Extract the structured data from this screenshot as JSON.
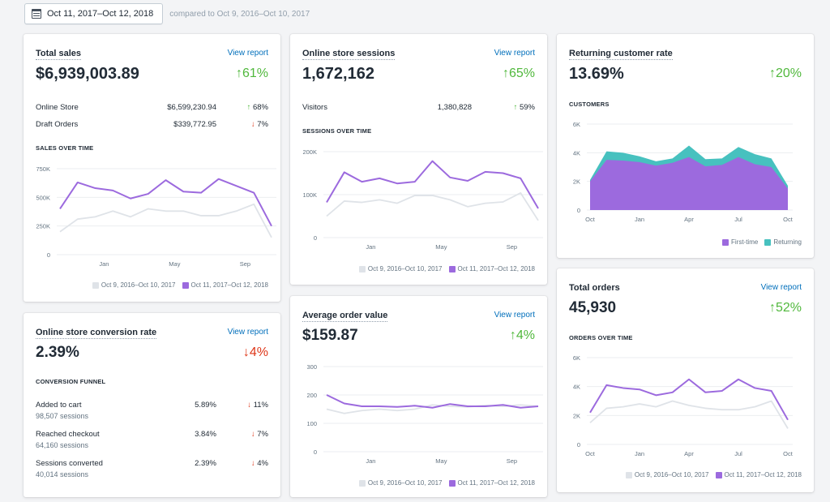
{
  "date_range": {
    "label": "Oct 11, 2017–Oct 12, 2018",
    "compare": "compared to Oct 9, 2016–Oct 10, 2017"
  },
  "colors": {
    "current": "#9c6ade",
    "previous": "#dfe3e8",
    "returning": "#47c1bf",
    "up": "#50b83c",
    "down": "#de3618",
    "link": "#006fbb"
  },
  "cards": {
    "total_sales": {
      "title": "Total sales",
      "view_report": "View report",
      "value": "$6,939,003.89",
      "delta": "61%",
      "rows": [
        {
          "label": "Online Store",
          "value": "$6,599,230.94",
          "delta": "68%"
        },
        {
          "label": "Draft Orders",
          "value": "$339,772.95",
          "delta": "7%"
        }
      ],
      "section": "SALES OVER TIME",
      "legend": {
        "previous": "Oct 9, 2016–Oct 10, 2017",
        "current": "Oct 11, 2017–Oct 12, 2018"
      }
    },
    "sessions": {
      "title": "Online store sessions",
      "view_report": "View report",
      "value": "1,672,162",
      "delta": "65%",
      "rows": [
        {
          "label": "Visitors",
          "value": "1,380,828",
          "delta": "59%"
        }
      ],
      "section": "SESSIONS OVER TIME",
      "legend": {
        "previous": "Oct 9, 2016–Oct 10, 2017",
        "current": "Oct 11, 2017–Oct 12, 2018"
      }
    },
    "returning": {
      "title": "Returning customer rate",
      "value": "13.69%",
      "delta": "20%",
      "section": "CUSTOMERS",
      "legend": {
        "first": "First-time",
        "returning": "Returning"
      }
    },
    "conversion": {
      "title": "Online store conversion rate",
      "view_report": "View report",
      "value": "2.39%",
      "delta": "4%",
      "section": "CONVERSION FUNNEL",
      "rows": [
        {
          "label": "Added to cart",
          "sub": "98,507 sessions",
          "value": "5.89%",
          "delta": "11%"
        },
        {
          "label": "Reached checkout",
          "sub": "64,160 sessions",
          "value": "3.84%",
          "delta": "7%"
        },
        {
          "label": "Sessions converted",
          "sub": "40,014 sessions",
          "value": "2.39%",
          "delta": "4%"
        }
      ]
    },
    "aov": {
      "title": "Average order value",
      "view_report": "View report",
      "value": "$159.87",
      "delta": "4%",
      "legend": {
        "previous": "Oct 9, 2016–Oct 10, 2017",
        "current": "Oct 11, 2017–Oct 12, 2018"
      }
    },
    "orders": {
      "title": "Total orders",
      "view_report": "View report",
      "value": "45,930",
      "delta": "52%",
      "section": "ORDERS OVER TIME",
      "legend": {
        "previous": "Oct 9, 2016–Oct 10, 2017",
        "current": "Oct 11, 2017–Oct 12, 2018"
      }
    }
  },
  "chart_data": [
    {
      "id": "sales",
      "type": "line",
      "x": [
        0,
        1,
        2,
        3,
        4,
        5,
        6,
        7,
        8,
        9,
        10,
        11,
        12
      ],
      "xticks": [
        {
          "x": 2.5,
          "label": "Jan"
        },
        {
          "x": 6.5,
          "label": "May"
        },
        {
          "x": 10.5,
          "label": "Sep"
        }
      ],
      "ylim": [
        0,
        750000
      ],
      "yticks": [
        {
          "v": 0,
          "label": "0"
        },
        {
          "v": 250000,
          "label": "250K"
        },
        {
          "v": 500000,
          "label": "500K"
        },
        {
          "v": 750000,
          "label": "750K"
        }
      ],
      "series": [
        {
          "name": "Oct 9, 2016–Oct 10, 2017",
          "values": [
            200000,
            310000,
            330000,
            380000,
            330000,
            400000,
            380000,
            380000,
            340000,
            340000,
            380000,
            440000,
            150000
          ]
        },
        {
          "name": "Oct 11, 2017–Oct 12, 2018",
          "values": [
            400000,
            630000,
            580000,
            560000,
            490000,
            530000,
            650000,
            550000,
            540000,
            660000,
            600000,
            540000,
            250000
          ]
        }
      ]
    },
    {
      "id": "sessions",
      "type": "line",
      "x": [
        0,
        1,
        2,
        3,
        4,
        5,
        6,
        7,
        8,
        9,
        10,
        11,
        12
      ],
      "xticks": [
        {
          "x": 2.5,
          "label": "Jan"
        },
        {
          "x": 6.5,
          "label": "May"
        },
        {
          "x": 10.5,
          "label": "Sep"
        }
      ],
      "ylim": [
        0,
        200000
      ],
      "yticks": [
        {
          "v": 0,
          "label": "0"
        },
        {
          "v": 100000,
          "label": "100K"
        },
        {
          "v": 200000,
          "label": "200K"
        }
      ],
      "series": [
        {
          "name": "Oct 9, 2016–Oct 10, 2017",
          "values": [
            50000,
            85000,
            82000,
            88000,
            80000,
            98000,
            98000,
            88000,
            72000,
            80000,
            83000,
            104000,
            40000
          ]
        },
        {
          "name": "Oct 11, 2017–Oct 12, 2018",
          "values": [
            82000,
            152000,
            130000,
            138000,
            126000,
            130000,
            178000,
            140000,
            132000,
            153000,
            150000,
            138000,
            68000
          ]
        }
      ]
    },
    {
      "id": "customers",
      "type": "area",
      "x": [
        0,
        1,
        2,
        3,
        4,
        5,
        6,
        7,
        8,
        9,
        10,
        11,
        12
      ],
      "xticks": [
        {
          "x": 0,
          "label": "Oct"
        },
        {
          "x": 3,
          "label": "Jan"
        },
        {
          "x": 6,
          "label": "Apr"
        },
        {
          "x": 9,
          "label": "Jul"
        },
        {
          "x": 12,
          "label": "Oct"
        }
      ],
      "ylim": [
        0,
        6000
      ],
      "yticks": [
        {
          "v": 0,
          "label": "0"
        },
        {
          "v": 2000,
          "label": "2K"
        },
        {
          "v": 4000,
          "label": "4K"
        },
        {
          "v": 6000,
          "label": "6K"
        }
      ],
      "series": [
        {
          "name": "First-time",
          "values": [
            2000,
            3500,
            3450,
            3350,
            3100,
            3300,
            3700,
            3050,
            3150,
            3700,
            3200,
            3000,
            1500
          ]
        },
        {
          "name": "Returning",
          "values": [
            2100,
            4100,
            4000,
            3750,
            3400,
            3600,
            4500,
            3550,
            3600,
            4400,
            3900,
            3600,
            1700
          ]
        }
      ]
    },
    {
      "id": "aov",
      "type": "line",
      "x": [
        0,
        1,
        2,
        3,
        4,
        5,
        6,
        7,
        8,
        9,
        10,
        11,
        12
      ],
      "xticks": [
        {
          "x": 2.5,
          "label": "Jan"
        },
        {
          "x": 6.5,
          "label": "May"
        },
        {
          "x": 10.5,
          "label": "Sep"
        }
      ],
      "ylim": [
        0,
        300
      ],
      "yticks": [
        {
          "v": 0,
          "label": "0"
        },
        {
          "v": 100,
          "label": "100"
        },
        {
          "v": 200,
          "label": "200"
        },
        {
          "v": 300,
          "label": "300"
        }
      ],
      "series": [
        {
          "name": "Oct 9, 2016–Oct 10, 2017",
          "values": [
            150,
            135,
            145,
            150,
            145,
            150,
            165,
            160,
            158,
            163,
            160,
            165,
            160
          ]
        },
        {
          "name": "Oct 11, 2017–Oct 12, 2018",
          "values": [
            200,
            170,
            160,
            160,
            158,
            162,
            155,
            168,
            160,
            160,
            165,
            155,
            160
          ]
        }
      ]
    },
    {
      "id": "orders",
      "type": "line",
      "x": [
        0,
        1,
        2,
        3,
        4,
        5,
        6,
        7,
        8,
        9,
        10,
        11,
        12
      ],
      "xticks": [
        {
          "x": 0,
          "label": "Oct"
        },
        {
          "x": 3,
          "label": "Jan"
        },
        {
          "x": 6,
          "label": "Apr"
        },
        {
          "x": 9,
          "label": "Jul"
        },
        {
          "x": 12,
          "label": "Oct"
        }
      ],
      "ylim": [
        0,
        6000
      ],
      "yticks": [
        {
          "v": 0,
          "label": "0"
        },
        {
          "v": 2000,
          "label": "2K"
        },
        {
          "v": 4000,
          "label": "4K"
        },
        {
          "v": 6000,
          "label": "6K"
        }
      ],
      "series": [
        {
          "name": "Oct 9, 2016–Oct 10, 2017",
          "values": [
            1500,
            2500,
            2600,
            2800,
            2600,
            3000,
            2700,
            2500,
            2400,
            2400,
            2600,
            3000,
            1100
          ]
        },
        {
          "name": "Oct 11, 2017–Oct 12, 2018",
          "values": [
            2200,
            4100,
            3900,
            3800,
            3400,
            3600,
            4500,
            3600,
            3700,
            4500,
            3900,
            3700,
            1700
          ]
        }
      ]
    }
  ]
}
